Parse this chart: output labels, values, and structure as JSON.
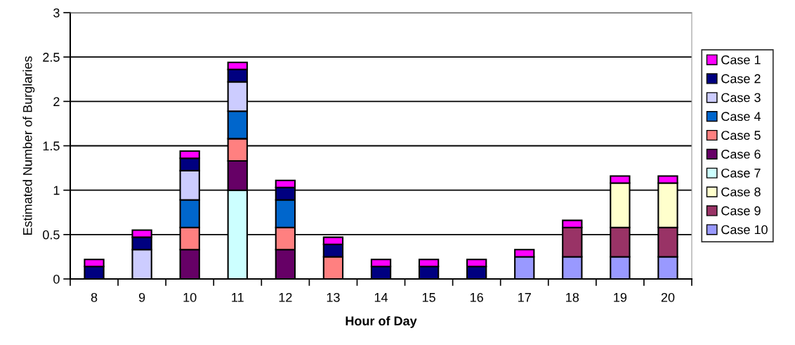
{
  "chart_data": {
    "type": "bar",
    "stacked": true,
    "xlabel": "Hour of Day",
    "ylabel": "Estimated Number of Burglaries",
    "categories": [
      "8",
      "9",
      "10",
      "11",
      "12",
      "13",
      "14",
      "15",
      "16",
      "17",
      "18",
      "19",
      "20"
    ],
    "series": [
      {
        "name": "Case 10",
        "color": "#9999ff",
        "values": [
          null,
          null,
          null,
          null,
          null,
          null,
          null,
          null,
          null,
          0.25,
          0.25,
          0.25,
          0.25
        ]
      },
      {
        "name": "Case 9",
        "color": "#993366",
        "values": [
          null,
          null,
          null,
          null,
          null,
          null,
          null,
          null,
          null,
          null,
          0.33,
          0.33,
          0.33
        ]
      },
      {
        "name": "Case 8",
        "color": "#ffffcc",
        "values": [
          null,
          null,
          null,
          null,
          null,
          null,
          null,
          null,
          null,
          null,
          null,
          0.5,
          0.5
        ]
      },
      {
        "name": "Case 7",
        "color": "#ccffff",
        "values": [
          null,
          null,
          null,
          1,
          null,
          null,
          null,
          null,
          null,
          null,
          null,
          null,
          null
        ]
      },
      {
        "name": "Case 6",
        "color": "#660066",
        "values": [
          null,
          null,
          0.33,
          0.33,
          0.33,
          null,
          null,
          null,
          null,
          null,
          null,
          null,
          null
        ]
      },
      {
        "name": "Case 5",
        "color": "#ff8080",
        "values": [
          null,
          null,
          0.25,
          0.25,
          0.25,
          0.25,
          null,
          null,
          null,
          null,
          null,
          null,
          null
        ]
      },
      {
        "name": "Case 4",
        "color": "#0066cc",
        "values": [
          null,
          null,
          0.31,
          0.31,
          0.31,
          null,
          null,
          null,
          null,
          null,
          null,
          null,
          null
        ]
      },
      {
        "name": "Case 3",
        "color": "#ccccff",
        "values": [
          null,
          0.33,
          0.33,
          0.33,
          null,
          null,
          null,
          null,
          null,
          null,
          null,
          null,
          null
        ]
      },
      {
        "name": "Case 2",
        "color": "#000080",
        "values": [
          0.14,
          0.14,
          0.14,
          0.14,
          0.14,
          0.14,
          0.14,
          0.14,
          0.14,
          null,
          null,
          null,
          null
        ]
      },
      {
        "name": "Case 1",
        "color": "#ff00ff",
        "values": [
          0.08,
          0.08,
          0.08,
          0.08,
          0.08,
          0.08,
          0.08,
          0.08,
          0.08,
          0.08,
          0.08,
          0.08,
          0.08
        ]
      }
    ],
    "ylim": [
      0,
      3
    ],
    "yticks": [
      0,
      0.5,
      1,
      1.5,
      2,
      2.5,
      3
    ],
    "grid": "y",
    "legend": "right"
  }
}
